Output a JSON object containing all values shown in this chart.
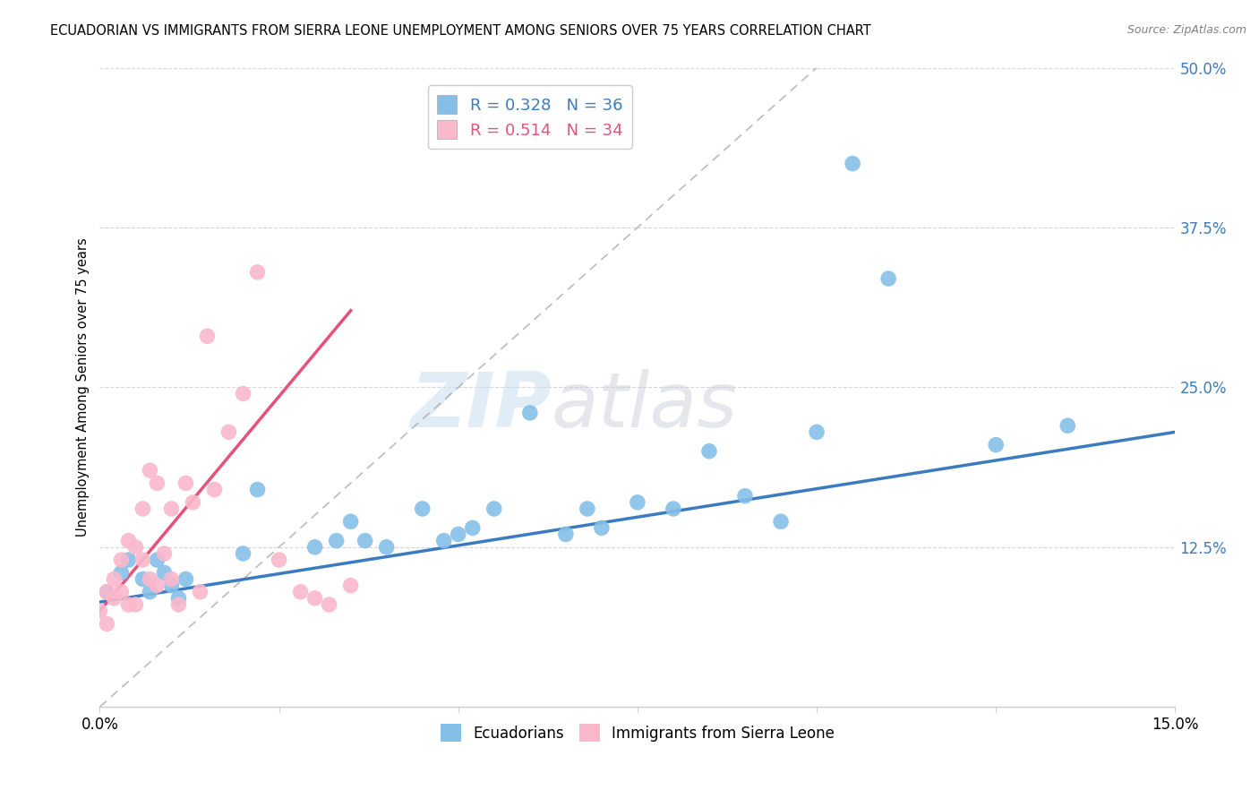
{
  "title": "ECUADORIAN VS IMMIGRANTS FROM SIERRA LEONE UNEMPLOYMENT AMONG SENIORS OVER 75 YEARS CORRELATION CHART",
  "source": "Source: ZipAtlas.com",
  "ylabel": "Unemployment Among Seniors over 75 years",
  "xlim": [
    0,
    0.15
  ],
  "ylim": [
    0,
    0.5
  ],
  "xticks": [
    0.0,
    0.025,
    0.05,
    0.075,
    0.1,
    0.125,
    0.15
  ],
  "yticks": [
    0.0,
    0.125,
    0.25,
    0.375,
    0.5
  ],
  "xtick_labels": [
    "0.0%",
    "",
    "",
    "",
    "",
    "",
    "15.0%"
  ],
  "ytick_labels": [
    "",
    "12.5%",
    "25.0%",
    "37.5%",
    "50.0%"
  ],
  "R_blue": 0.328,
  "N_blue": 36,
  "R_pink": 0.514,
  "N_pink": 34,
  "blue_color": "#85bfe8",
  "pink_color": "#f9b8cb",
  "blue_line_color": "#3a7cbf",
  "pink_line_color": "#e8507a",
  "watermark_zip": "ZIP",
  "watermark_atlas": "atlas",
  "blue_scatter_x": [
    0.001,
    0.003,
    0.004,
    0.006,
    0.007,
    0.008,
    0.009,
    0.01,
    0.011,
    0.012,
    0.02,
    0.022,
    0.03,
    0.033,
    0.035,
    0.037,
    0.04,
    0.045,
    0.048,
    0.05,
    0.052,
    0.055,
    0.06,
    0.065,
    0.068,
    0.07,
    0.075,
    0.08,
    0.085,
    0.09,
    0.095,
    0.1,
    0.105,
    0.11,
    0.125,
    0.135
  ],
  "blue_scatter_y": [
    0.09,
    0.105,
    0.115,
    0.1,
    0.09,
    0.115,
    0.105,
    0.095,
    0.085,
    0.1,
    0.12,
    0.17,
    0.125,
    0.13,
    0.145,
    0.13,
    0.125,
    0.155,
    0.13,
    0.135,
    0.14,
    0.155,
    0.23,
    0.135,
    0.155,
    0.14,
    0.16,
    0.155,
    0.2,
    0.165,
    0.145,
    0.215,
    0.425,
    0.335,
    0.205,
    0.22
  ],
  "pink_scatter_x": [
    0.0,
    0.001,
    0.001,
    0.002,
    0.002,
    0.003,
    0.003,
    0.004,
    0.004,
    0.005,
    0.005,
    0.006,
    0.006,
    0.007,
    0.007,
    0.008,
    0.008,
    0.009,
    0.01,
    0.01,
    0.011,
    0.012,
    0.013,
    0.014,
    0.015,
    0.016,
    0.018,
    0.02,
    0.022,
    0.025,
    0.028,
    0.03,
    0.032,
    0.035
  ],
  "pink_scatter_y": [
    0.075,
    0.065,
    0.09,
    0.085,
    0.1,
    0.09,
    0.115,
    0.08,
    0.13,
    0.08,
    0.125,
    0.115,
    0.155,
    0.1,
    0.185,
    0.095,
    0.175,
    0.12,
    0.1,
    0.155,
    0.08,
    0.175,
    0.16,
    0.09,
    0.29,
    0.17,
    0.215,
    0.245,
    0.34,
    0.115,
    0.09,
    0.085,
    0.08,
    0.095
  ],
  "blue_trend": [
    0.0,
    0.15,
    0.082,
    0.215
  ],
  "pink_trend": [
    0.0,
    0.035,
    0.075,
    0.31
  ]
}
